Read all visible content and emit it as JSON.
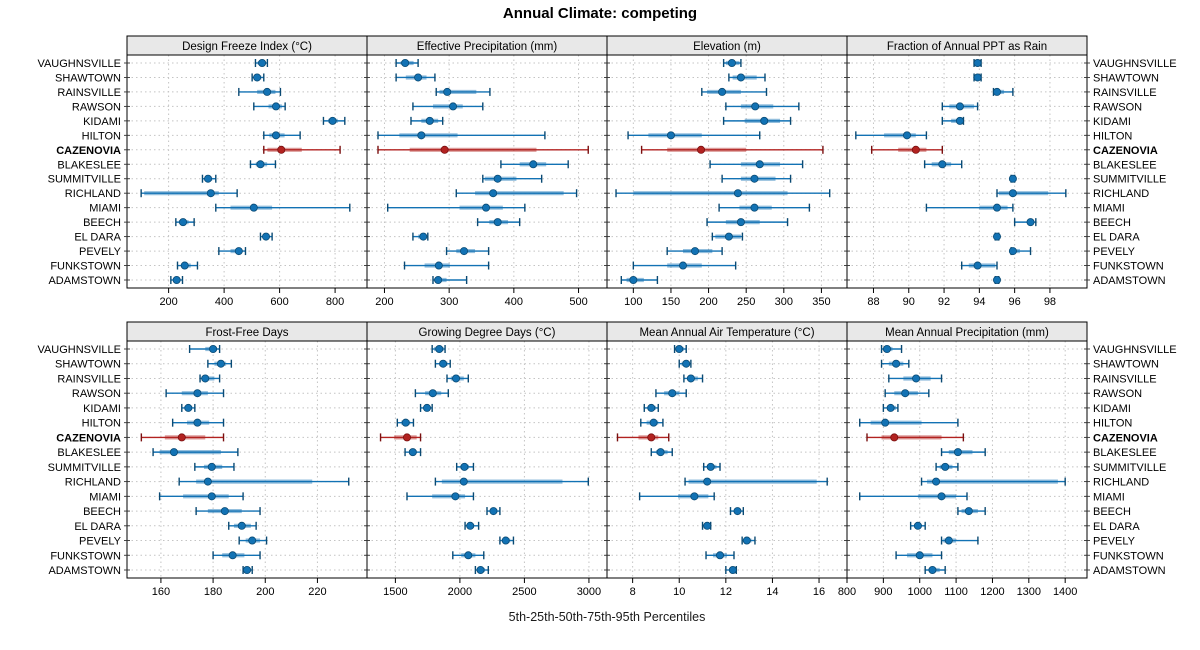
{
  "title": "Annual Climate: competing",
  "footer": "5th-25th-50th-75th-95th Percentiles",
  "colors": {
    "blue": "#1272B4",
    "blue_dark": "#0B4A73",
    "red": "#B22220",
    "red_dark": "#7A1010",
    "header_bg": "#E8E8E8",
    "grid": "#C4C4C4",
    "border": "#000000"
  },
  "stations": [
    "VAUGHNSVILLE",
    "SHAWTOWN",
    "RAINSVILLE",
    "RAWSON",
    "KIDAMI",
    "HILTON",
    "CAZENOVIA",
    "BLAKESLEE",
    "SUMMITVILLE",
    "RICHLAND",
    "MIAMI",
    "BEECH",
    "EL DARA",
    "PEVELY",
    "FUNKSTOWN",
    "ADAMSTOWN"
  ],
  "highlight_station": "CAZENOVIA",
  "chart_data": {
    "type": "dotplot-trellis",
    "percentile_labels": [
      "5th",
      "25th",
      "50th",
      "75th",
      "95th"
    ],
    "layout": {
      "rows": 2,
      "cols": 4
    },
    "panels": [
      {
        "title": "Design Freeze Index (°C)",
        "row": 0,
        "col": 0,
        "xlim": [
          50,
          915
        ],
        "ticks": [
          200,
          400,
          600,
          800
        ],
        "values": [
          [
            513,
            521,
            537,
            549,
            556
          ],
          [
            501,
            510,
            519,
            534,
            543
          ],
          [
            453,
            519,
            555,
            585,
            603
          ],
          [
            507,
            560,
            587,
            608,
            620
          ],
          [
            758,
            775,
            791,
            810,
            835
          ],
          [
            543,
            563,
            587,
            618,
            674
          ],
          [
            543,
            556,
            606,
            680,
            818
          ],
          [
            495,
            514,
            531,
            555,
            585
          ],
          [
            322,
            331,
            342,
            357,
            370
          ],
          [
            101,
            112,
            352,
            381,
            447
          ],
          [
            370,
            423,
            507,
            573,
            853
          ],
          [
            226,
            237,
            252,
            272,
            292
          ],
          [
            531,
            541,
            551,
            562,
            573
          ],
          [
            381,
            423,
            453,
            465,
            477
          ],
          [
            232,
            246,
            258,
            280,
            304
          ],
          [
            208,
            216,
            229,
            240,
            250
          ]
        ]
      },
      {
        "title": "Effective Precipitation (mm)",
        "row": 0,
        "col": 1,
        "xlim": [
          173,
          544
        ],
        "ticks": [
          200,
          300,
          400,
          500
        ],
        "values": [
          [
            218,
            225,
            232,
            245,
            252
          ],
          [
            218,
            233,
            252,
            265,
            278
          ],
          [
            280,
            285,
            297,
            342,
            363
          ],
          [
            244,
            275,
            306,
            321,
            352
          ],
          [
            241,
            257,
            270,
            283,
            290
          ],
          [
            190,
            223,
            257,
            313,
            448
          ],
          [
            190,
            239,
            293,
            435,
            515
          ],
          [
            380,
            409,
            430,
            450,
            484
          ],
          [
            352,
            355,
            375,
            404,
            443
          ],
          [
            311,
            340,
            368,
            477,
            497
          ],
          [
            205,
            316,
            357,
            383,
            417
          ],
          [
            344,
            362,
            375,
            391,
            409
          ],
          [
            244,
            252,
            260,
            265,
            267
          ],
          [
            296,
            311,
            323,
            340,
            361
          ],
          [
            231,
            262,
            284,
            301,
            361
          ],
          [
            275,
            277,
            283,
            296,
            327
          ]
        ]
      },
      {
        "title": "Elevation (m)",
        "row": 0,
        "col": 2,
        "xlim": [
          65,
          384
        ],
        "ticks": [
          100,
          150,
          200,
          250,
          300,
          350
        ],
        "values": [
          [
            220,
            223,
            231,
            241,
            243
          ],
          [
            227,
            232,
            243,
            264,
            275
          ],
          [
            191,
            198,
            218,
            243,
            277
          ],
          [
            223,
            243,
            262,
            286,
            320
          ],
          [
            220,
            248,
            274,
            295,
            309
          ],
          [
            93,
            120,
            150,
            191,
            268
          ],
          [
            111,
            145,
            190,
            250,
            352
          ],
          [
            202,
            243,
            268,
            295,
            325
          ],
          [
            218,
            243,
            261,
            289,
            309
          ],
          [
            77,
            100,
            239,
            305,
            361
          ],
          [
            214,
            241,
            261,
            284,
            334
          ],
          [
            198,
            223,
            243,
            268,
            305
          ],
          [
            205,
            209,
            227,
            243,
            245
          ],
          [
            145,
            166,
            182,
            205,
            218
          ],
          [
            100,
            145,
            166,
            191,
            236
          ],
          [
            84,
            91,
            100,
            114,
            132
          ]
        ]
      },
      {
        "title": "Fraction of Annual PPT as Rain",
        "row": 0,
        "col": 3,
        "xlim": [
          86.5,
          100.1
        ],
        "ticks": [
          88,
          90,
          92,
          94,
          96,
          98
        ],
        "values": [
          [
            93.7,
            93.8,
            93.9,
            94,
            94.1
          ],
          [
            93.7,
            93.8,
            93.9,
            94,
            94.1
          ],
          [
            94.8,
            94.9,
            95,
            95.4,
            95.9
          ],
          [
            91.9,
            92.3,
            92.9,
            93.7,
            93.9
          ],
          [
            91.9,
            92.4,
            92.9,
            93,
            93.1
          ],
          [
            87,
            88.6,
            89.9,
            90.4,
            91
          ],
          [
            87.9,
            89.4,
            90.4,
            91,
            91.9
          ],
          [
            90.9,
            91.3,
            91.9,
            92.4,
            93
          ],
          [
            95.8,
            95.85,
            95.9,
            95.95,
            96
          ],
          [
            95,
            95.1,
            95.9,
            97.9,
            98.9
          ],
          [
            91,
            94,
            95,
            95.6,
            95.9
          ],
          [
            96,
            96.7,
            96.9,
            97,
            97.2
          ],
          [
            94.9,
            94.95,
            95,
            95.05,
            95.1
          ],
          [
            95.8,
            95.85,
            95.9,
            96.3,
            96.9
          ],
          [
            93,
            93.4,
            93.9,
            94.9,
            95
          ],
          [
            94.9,
            94.95,
            95,
            95.05,
            95.1
          ]
        ]
      },
      {
        "title": "Frost-Free Days",
        "row": 1,
        "col": 0,
        "xlim": [
          147,
          239
        ],
        "ticks": [
          160,
          180,
          200,
          220
        ],
        "values": [
          [
            171,
            177,
            180,
            181.5,
            182.5
          ],
          [
            178,
            180.5,
            183,
            185,
            187
          ],
          [
            175,
            175.5,
            177,
            180.5,
            182.5
          ],
          [
            162,
            168,
            174,
            178,
            184
          ],
          [
            168,
            169,
            170.5,
            172,
            173
          ],
          [
            164.5,
            170,
            174,
            178.5,
            184
          ],
          [
            152.5,
            161.5,
            168,
            177,
            184
          ],
          [
            157,
            159.5,
            165,
            183,
            189.5
          ],
          [
            173,
            176.5,
            179.5,
            183.5,
            188
          ],
          [
            167,
            173.5,
            178,
            218,
            232
          ],
          [
            159.5,
            168.5,
            179.5,
            186,
            191.5
          ],
          [
            173.5,
            178,
            184.5,
            191,
            198
          ],
          [
            186,
            188,
            191,
            194.5,
            196.5
          ],
          [
            190,
            192.5,
            195,
            198,
            200.5
          ],
          [
            180,
            183.5,
            187.5,
            192,
            198
          ],
          [
            191.5,
            192,
            193,
            194.5,
            195
          ]
        ]
      },
      {
        "title": "Growing Degree Days (°C)",
        "row": 1,
        "col": 1,
        "xlim": [
          1280,
          3140
        ],
        "ticks": [
          1500,
          2000,
          2500,
          3000
        ],
        "values": [
          [
            1785,
            1800,
            1840,
            1875,
            1885
          ],
          [
            1810,
            1840,
            1870,
            1905,
            1925
          ],
          [
            1900,
            1930,
            1970,
            2030,
            2065
          ],
          [
            1655,
            1730,
            1790,
            1855,
            1910
          ],
          [
            1695,
            1720,
            1745,
            1770,
            1785
          ],
          [
            1515,
            1545,
            1580,
            1615,
            1640
          ],
          [
            1385,
            1490,
            1590,
            1665,
            1695
          ],
          [
            1575,
            1605,
            1635,
            1665,
            1695
          ],
          [
            1975,
            2005,
            2035,
            2070,
            2105
          ],
          [
            1810,
            1860,
            2030,
            2795,
            2995
          ],
          [
            1590,
            1785,
            1965,
            2040,
            2105
          ],
          [
            2210,
            2235,
            2260,
            2290,
            2310
          ],
          [
            2040,
            2060,
            2080,
            2110,
            2145
          ],
          [
            2310,
            2335,
            2355,
            2390,
            2415
          ],
          [
            1945,
            2010,
            2065,
            2120,
            2185
          ],
          [
            2120,
            2140,
            2160,
            2195,
            2220
          ]
        ]
      },
      {
        "title": "Mean Annual Air Temperature (°C)",
        "row": 1,
        "col": 2,
        "xlim": [
          6.9,
          17.2
        ],
        "ticks": [
          8,
          10,
          12,
          14,
          16
        ],
        "values": [
          [
            9.8,
            9.9,
            10,
            10.2,
            10.3
          ],
          [
            10,
            10.1,
            10.3,
            10.4,
            10.5
          ],
          [
            10.2,
            10.35,
            10.5,
            10.8,
            11
          ],
          [
            9,
            9.35,
            9.7,
            10,
            10.3
          ],
          [
            8.5,
            8.65,
            8.8,
            9,
            9.1
          ],
          [
            8.35,
            8.6,
            8.9,
            9.1,
            9.3
          ],
          [
            7.35,
            8.25,
            8.8,
            9.1,
            9.55
          ],
          [
            8.8,
            9,
            9.2,
            9.5,
            9.7
          ],
          [
            11.05,
            11.2,
            11.35,
            11.6,
            11.75
          ],
          [
            10.25,
            10.4,
            11.2,
            15.9,
            16.35
          ],
          [
            8.3,
            9.95,
            10.65,
            11.25,
            11.5
          ],
          [
            12.2,
            12.35,
            12.5,
            12.65,
            12.75
          ],
          [
            11,
            11.1,
            11.2,
            11.3,
            11.35
          ],
          [
            12.7,
            12.8,
            12.9,
            13.1,
            13.25
          ],
          [
            11.15,
            11.45,
            11.75,
            12.05,
            12.35
          ],
          [
            12,
            12.15,
            12.3,
            12.4,
            12.45
          ]
        ]
      },
      {
        "title": "Mean Annual Precipitation (mm)",
        "row": 1,
        "col": 3,
        "xlim": [
          800,
          1460
        ],
        "ticks": [
          800,
          900,
          1000,
          1100,
          1200,
          1300,
          1400
        ],
        "values": [
          [
            895,
            900,
            910,
            925,
            950
          ],
          [
            895,
            915,
            935,
            955,
            970
          ],
          [
            915,
            955,
            990,
            1030,
            1060
          ],
          [
            905,
            930,
            960,
            995,
            1025
          ],
          [
            900,
            910,
            920,
            935,
            940
          ],
          [
            835,
            865,
            905,
            1005,
            1105
          ],
          [
            855,
            895,
            930,
            1060,
            1120
          ],
          [
            1060,
            1080,
            1105,
            1145,
            1180
          ],
          [
            1045,
            1055,
            1070,
            1090,
            1105
          ],
          [
            1005,
            1020,
            1045,
            1380,
            1400
          ],
          [
            835,
            995,
            1060,
            1100,
            1130
          ],
          [
            1105,
            1115,
            1135,
            1160,
            1180
          ],
          [
            975,
            985,
            995,
            1005,
            1015
          ],
          [
            1060,
            1065,
            1080,
            1100,
            1160
          ],
          [
            935,
            965,
            1000,
            1035,
            1060
          ],
          [
            1015,
            1025,
            1035,
            1055,
            1070
          ]
        ]
      }
    ]
  }
}
